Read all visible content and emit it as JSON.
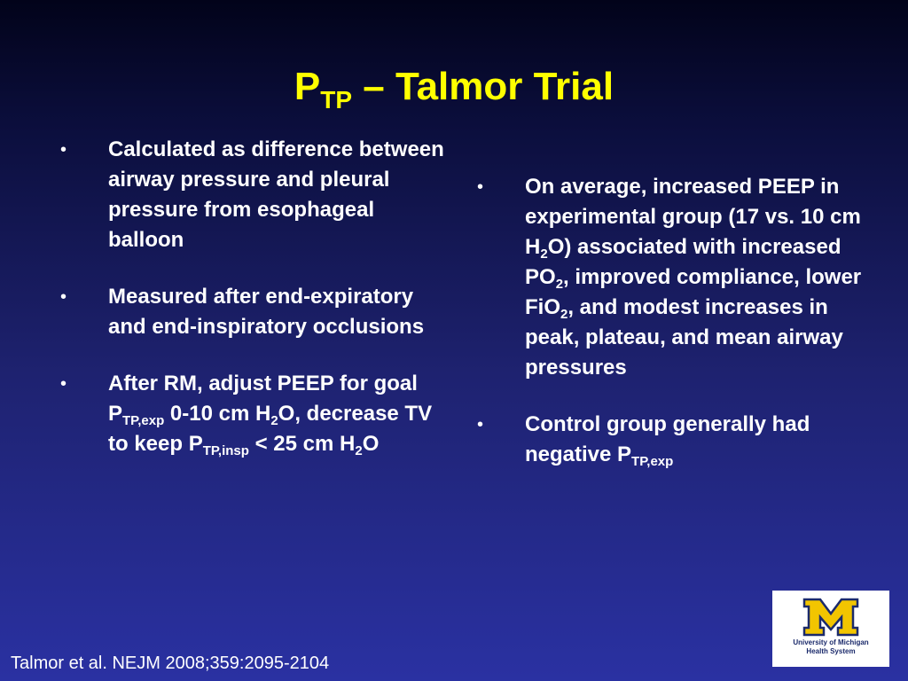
{
  "slide": {
    "title": {
      "base": "P",
      "sub": "TP",
      "rest": " – Talmor Trial"
    },
    "left_bullets": [
      {
        "parts": [
          {
            "t": "Calculated as difference between airway pressure and pleural pressure from esophageal balloon"
          }
        ]
      },
      {
        "parts": [
          {
            "t": "Measured after end-expiratory and end-inspiratory occlusions"
          }
        ]
      },
      {
        "parts": [
          {
            "t": "After RM, adjust PEEP for goal P"
          },
          {
            "sub": "TP,exp"
          },
          {
            "t": " 0-10 cm H"
          },
          {
            "sub": "2"
          },
          {
            "t": "O, decrease TV to keep P"
          },
          {
            "sub": "TP,insp"
          },
          {
            "t": " < 25 cm H"
          },
          {
            "sub": "2"
          },
          {
            "t": "O"
          }
        ]
      }
    ],
    "right_bullets": [
      {
        "parts": [
          {
            "t": "On average, increased PEEP in experimental group (17 vs. 10 cm H"
          },
          {
            "sub": "2"
          },
          {
            "t": "O) associated with increased PO"
          },
          {
            "sub": "2"
          },
          {
            "t": ", improved compliance, lower FiO"
          },
          {
            "sub": "2"
          },
          {
            "t": ", and modest increases in peak, plateau, and mean airway pressures"
          }
        ]
      },
      {
        "parts": [
          {
            "t": "Control group generally had negative P"
          },
          {
            "sub": "TP,exp"
          }
        ]
      }
    ],
    "bullet_glyph": "•",
    "citation": "Talmor et al. NEJM 2008;359:2095-2104",
    "logo": {
      "icon": "block-m-logo-icon",
      "line1": "University of Michigan",
      "line2": "Health System"
    },
    "colors": {
      "title": "#ffff00",
      "body_text": "#ffffff",
      "background_top": "#02031a",
      "background_bottom": "#2a31a2",
      "logo_maize": "#f2c500",
      "logo_blue": "#1b2a6b"
    }
  }
}
